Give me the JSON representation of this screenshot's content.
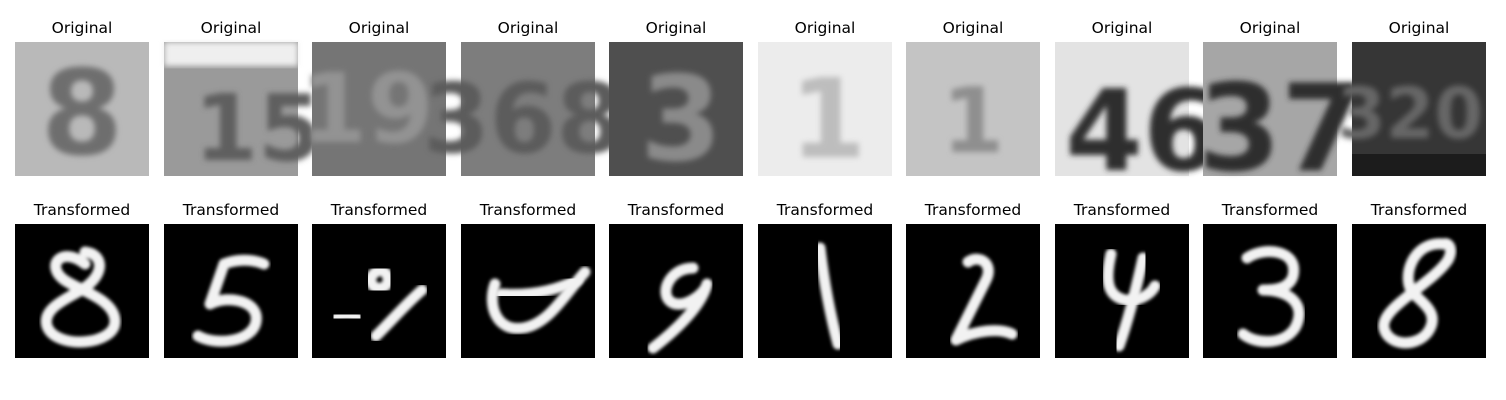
{
  "figure": {
    "rows": [
      {
        "key": "original",
        "cells": [
          {
            "title": "Original",
            "digit_text": "8",
            "bg": "#b9b9b9",
            "fg": "#6e6e6e",
            "tone": "light"
          },
          {
            "title": "Original",
            "digit_text": "15",
            "bg": "#9a9a9a",
            "fg": "#5e5e5e",
            "tone": "mid"
          },
          {
            "title": "Original",
            "digit_text": "19",
            "bg": "#757575",
            "fg": "#939393",
            "tone": "dark"
          },
          {
            "title": "Original",
            "digit_text": "368",
            "bg": "#7d7d7d",
            "fg": "#5c5c5c",
            "tone": "mid"
          },
          {
            "title": "Original",
            "digit_text": "3",
            "bg": "#4f4f4f",
            "fg": "#8a8a8a",
            "tone": "dark"
          },
          {
            "title": "Original",
            "digit_text": "1",
            "bg": "#ececec",
            "fg": "#bdbdbd",
            "tone": "light"
          },
          {
            "title": "Original",
            "digit_text": "1",
            "bg": "#c4c4c4",
            "fg": "#8f8f8f",
            "tone": "light"
          },
          {
            "title": "Original",
            "digit_text": "46",
            "bg": "#e3e3e3",
            "fg": "#2e2e2e",
            "tone": "light"
          },
          {
            "title": "Original",
            "digit_text": "37",
            "bg": "#a6a6a6",
            "fg": "#2f2f2f",
            "tone": "mid"
          },
          {
            "title": "Original",
            "digit_text": "320",
            "bg": "#363636",
            "fg": "#666666",
            "tone": "dark"
          }
        ]
      },
      {
        "key": "transformed",
        "cells": [
          {
            "title": "Transformed",
            "glyph": "eight-loop"
          },
          {
            "title": "Transformed",
            "glyph": "five"
          },
          {
            "title": "Transformed",
            "glyph": "scribble"
          },
          {
            "title": "Transformed",
            "glyph": "cup"
          },
          {
            "title": "Transformed",
            "glyph": "nine"
          },
          {
            "title": "Transformed",
            "glyph": "one"
          },
          {
            "title": "Transformed",
            "glyph": "two"
          },
          {
            "title": "Transformed",
            "glyph": "four"
          },
          {
            "title": "Transformed",
            "glyph": "three"
          },
          {
            "title": "Transformed",
            "glyph": "eight-slant"
          }
        ]
      }
    ],
    "colors": {
      "transformed_bg": "#000000",
      "transformed_stroke": "#f2f2f2"
    }
  }
}
